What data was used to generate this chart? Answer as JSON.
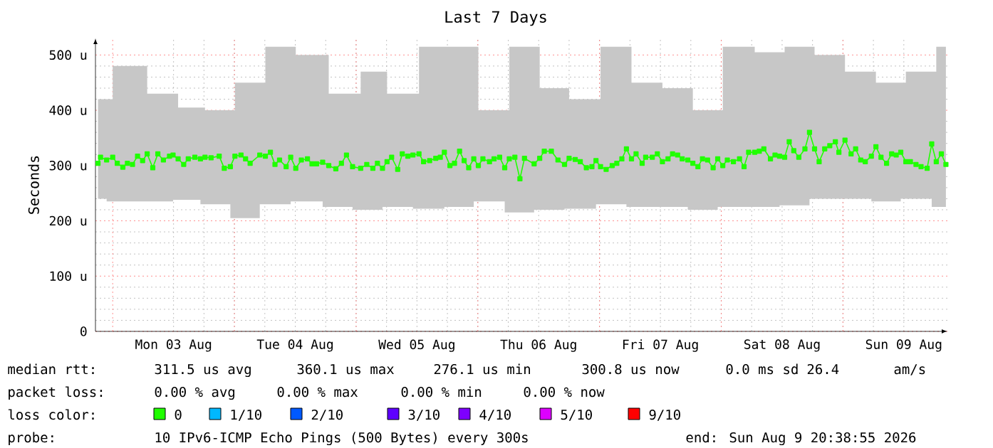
{
  "chart_data": {
    "type": "line",
    "title": "Last 7 Days",
    "ylabel": "Seconds",
    "xlim": [
      "2026-08-02T20:36",
      "2026-08-09T20:36"
    ],
    "ylim": [
      0,
      530
    ],
    "xticks": [
      {
        "value": "2026-08-03T00:00",
        "label": null
      },
      {
        "value": "2026-08-03T12:00",
        "label": "Mon 03 Aug"
      },
      {
        "value": "2026-08-04T00:00",
        "label": null
      },
      {
        "value": "2026-08-04T12:00",
        "label": "Tue 04 Aug"
      },
      {
        "value": "2026-08-05T00:00",
        "label": null
      },
      {
        "value": "2026-08-05T12:00",
        "label": "Wed 05 Aug"
      },
      {
        "value": "2026-08-06T00:00",
        "label": null
      },
      {
        "value": "2026-08-06T12:00",
        "label": "Thu 06 Aug"
      },
      {
        "value": "2026-08-07T00:00",
        "label": null
      },
      {
        "value": "2026-08-07T12:00",
        "label": "Fri 07 Aug"
      },
      {
        "value": "2026-08-08T00:00",
        "label": null
      },
      {
        "value": "2026-08-08T12:00",
        "label": "Sat 08 Aug"
      },
      {
        "value": "2026-08-09T00:00",
        "label": null
      },
      {
        "value": "2026-08-09T12:00",
        "label": "Sun 09 Aug"
      }
    ],
    "yticks": [
      0,
      {
        "value": 100,
        "label": "100 u"
      },
      {
        "value": 200,
        "label": "200 u"
      },
      {
        "value": 300,
        "label": "300 u"
      },
      {
        "value": 400,
        "label": "400 u"
      },
      {
        "value": 500,
        "label": "500 u"
      }
    ],
    "grid": true,
    "legend": "bottom",
    "legend_title": "loss color:",
    "marker": "square",
    "series": [
      {
        "name": "0",
        "color": "#20ff00",
        "x": [
          "2026-08-02T21:06",
          "2026-08-02T21:36",
          "2026-08-02T22:48",
          "2026-08-03T00:00",
          "2026-08-03T00:54",
          "2026-08-03T02:00",
          "2026-08-03T02:54",
          "2026-08-03T03:54",
          "2026-08-03T04:54",
          "2026-08-03T05:54",
          "2026-08-03T06:48",
          "2026-08-03T07:54",
          "2026-08-03T08:54",
          "2026-08-03T10:00",
          "2026-08-03T11:12",
          "2026-08-03T11:54",
          "2026-08-03T12:54",
          "2026-08-03T14:00",
          "2026-08-03T14:54",
          "2026-08-03T16:12",
          "2026-08-03T17:18",
          "2026-08-03T18:12",
          "2026-08-03T19:24",
          "2026-08-03T21:00",
          "2026-08-03T22:00",
          "2026-08-03T23:12",
          "2026-08-04T00:06",
          "2026-08-04T01:18",
          "2026-08-04T02:12",
          "2026-08-04T03:06",
          "2026-08-04T05:00",
          "2026-08-04T06:06",
          "2026-08-04T07:06",
          "2026-08-04T08:00",
          "2026-08-04T08:54",
          "2026-08-04T10:12",
          "2026-08-04T11:06",
          "2026-08-04T12:06",
          "2026-08-04T13:12",
          "2026-08-04T14:24",
          "2026-08-04T15:18",
          "2026-08-04T16:12",
          "2026-08-04T17:24",
          "2026-08-04T18:36",
          "2026-08-04T20:00",
          "2026-08-04T21:06",
          "2026-08-04T22:06",
          "2026-08-04T23:18",
          "2026-08-05T00:54",
          "2026-08-05T02:06",
          "2026-08-05T03:18",
          "2026-08-05T04:12",
          "2026-08-05T05:12",
          "2026-08-05T06:06",
          "2026-08-05T07:00",
          "2026-08-05T08:12",
          "2026-08-05T09:06",
          "2026-08-05T10:12",
          "2026-08-05T11:12",
          "2026-08-05T12:24",
          "2026-08-05T13:18",
          "2026-08-05T14:30",
          "2026-08-05T15:42",
          "2026-08-05T16:36",
          "2026-08-05T17:24",
          "2026-08-05T18:30",
          "2026-08-05T19:24",
          "2026-08-05T20:24",
          "2026-08-05T21:18",
          "2026-08-05T22:12",
          "2026-08-05T23:12",
          "2026-08-06T00:06",
          "2026-08-06T01:00",
          "2026-08-06T02:18",
          "2026-08-06T03:12",
          "2026-08-06T04:18",
          "2026-08-06T05:18",
          "2026-08-06T06:12",
          "2026-08-06T07:18",
          "2026-08-06T08:18",
          "2026-08-06T09:12",
          "2026-08-06T11:06",
          "2026-08-06T12:12",
          "2026-08-06T13:06",
          "2026-08-06T14:30",
          "2026-08-06T15:48",
          "2026-08-06T17:06",
          "2026-08-06T18:00",
          "2026-08-06T19:12",
          "2026-08-06T20:12",
          "2026-08-06T21:24",
          "2026-08-06T22:30",
          "2026-08-06T23:18",
          "2026-08-07T00:12",
          "2026-08-07T01:18",
          "2026-08-07T02:30",
          "2026-08-07T03:24",
          "2026-08-07T04:24",
          "2026-08-07T05:18",
          "2026-08-07T06:18",
          "2026-08-07T07:12",
          "2026-08-07T08:24",
          "2026-08-07T09:06",
          "2026-08-07T10:24",
          "2026-08-07T11:24",
          "2026-08-07T12:24",
          "2026-08-07T13:30",
          "2026-08-07T14:24",
          "2026-08-07T15:24",
          "2026-08-07T16:18",
          "2026-08-07T17:24",
          "2026-08-07T18:24",
          "2026-08-07T19:24",
          "2026-08-07T20:18",
          "2026-08-07T21:18",
          "2026-08-07T22:24",
          "2026-08-07T23:18",
          "2026-08-08T00:18",
          "2026-08-08T01:12",
          "2026-08-08T02:24",
          "2026-08-08T03:36",
          "2026-08-08T04:30",
          "2026-08-08T05:24",
          "2026-08-08T06:36",
          "2026-08-08T07:30",
          "2026-08-08T08:24",
          "2026-08-08T09:42",
          "2026-08-08T10:36",
          "2026-08-08T11:30",
          "2026-08-08T12:30",
          "2026-08-08T13:24",
          "2026-08-08T14:18",
          "2026-08-08T15:18",
          "2026-08-08T16:30",
          "2026-08-08T17:24",
          "2026-08-08T18:24",
          "2026-08-08T19:18",
          "2026-08-08T20:24",
          "2026-08-08T21:24",
          "2026-08-08T22:30",
          "2026-08-08T23:12",
          "2026-08-09T00:24",
          "2026-08-09T01:36",
          "2026-08-09T02:30",
          "2026-08-09T03:30",
          "2026-08-09T04:24",
          "2026-08-09T05:36",
          "2026-08-09T06:30",
          "2026-08-09T07:30",
          "2026-08-09T08:36",
          "2026-08-09T09:36",
          "2026-08-09T10:30",
          "2026-08-09T11:24",
          "2026-08-09T12:24",
          "2026-08-09T13:18",
          "2026-08-09T14:24",
          "2026-08-09T15:24",
          "2026-08-09T16:36",
          "2026-08-09T17:30",
          "2026-08-09T18:24",
          "2026-08-09T19:24",
          "2026-08-09T20:18"
        ],
        "values": [
          304,
          315,
          310,
          315,
          304,
          297,
          304,
          302,
          317,
          309,
          321,
          296,
          321,
          310,
          317,
          319,
          312,
          302,
          312,
          315,
          312,
          315,
          314,
          317,
          295,
          298,
          317,
          319,
          312,
          304,
          319,
          317,
          324,
          302,
          310,
          298,
          315,
          295,
          310,
          312,
          303,
          303,
          306,
          300,
          294,
          304,
          319,
          298,
          295,
          302,
          295,
          304,
          295,
          307,
          315,
          293,
          321,
          317,
          319,
          321,
          307,
          309,
          313,
          315,
          324,
          300,
          304,
          326,
          309,
          296,
          312,
          300,
          312,
          307,
          312,
          315,
          296,
          312,
          315,
          276,
          313,
          303,
          313,
          326,
          326,
          310,
          302,
          313,
          311,
          307,
          296,
          298,
          309,
          298,
          293,
          300,
          304,
          312,
          330,
          312,
          321,
          304,
          315,
          315,
          321,
          307,
          312,
          321,
          319,
          312,
          310,
          304,
          298,
          312,
          310,
          296,
          312,
          300,
          310,
          307,
          312,
          298,
          324,
          324,
          326,
          330,
          312,
          319,
          317,
          315,
          343,
          327,
          315,
          330,
          360,
          330,
          307,
          330,
          336,
          343,
          324,
          346,
          321,
          330,
          310,
          307,
          317,
          334,
          315,
          304,
          321,
          319,
          324,
          307,
          307,
          302,
          298,
          295,
          339,
          307,
          321,
          302
        ],
        "upper": [
          420,
          420,
          420,
          480,
          480,
          480,
          480,
          480,
          480,
          480,
          430,
          430,
          430,
          430,
          430,
          430,
          405,
          405,
          405,
          405,
          405,
          400,
          400,
          400,
          400,
          400,
          450,
          450,
          450,
          450,
          450,
          515,
          515,
          515,
          515,
          515,
          515,
          500,
          500,
          500,
          500,
          500,
          500,
          430,
          430,
          430,
          430,
          430,
          470,
          470,
          470,
          470,
          470,
          430,
          430,
          430,
          430,
          430,
          430,
          515,
          515,
          515,
          515,
          515,
          515,
          515,
          515,
          515,
          515,
          515,
          515,
          400,
          400,
          400,
          400,
          400,
          400,
          515,
          515,
          515,
          515,
          515,
          440,
          440,
          440,
          440,
          440,
          420,
          420,
          420,
          420,
          420,
          420,
          515,
          515,
          515,
          515,
          515,
          515,
          450,
          450,
          450,
          450,
          450,
          450,
          440,
          440,
          440,
          440,
          440,
          440,
          400,
          400,
          400,
          400,
          400,
          400,
          515,
          515,
          515,
          515,
          515,
          515,
          505,
          505,
          505,
          505,
          505,
          505,
          515,
          515,
          515,
          515,
          515,
          515,
          500,
          500,
          500,
          500,
          500,
          500,
          470,
          470,
          470,
          470,
          470,
          470,
          450,
          450,
          450,
          450,
          450,
          450,
          470,
          470,
          470,
          470,
          470,
          470,
          515,
          515,
          515
        ],
        "lower": [
          240,
          240,
          240,
          235,
          235,
          235,
          235,
          235,
          235,
          235,
          235,
          235,
          235,
          235,
          235,
          235,
          238,
          238,
          238,
          238,
          238,
          230,
          230,
          230,
          230,
          230,
          205,
          205,
          205,
          205,
          205,
          230,
          230,
          230,
          230,
          230,
          230,
          235,
          235,
          235,
          235,
          235,
          235,
          225,
          225,
          225,
          225,
          225,
          220,
          220,
          220,
          220,
          220,
          225,
          225,
          225,
          225,
          225,
          225,
          222,
          222,
          222,
          222,
          222,
          222,
          225,
          225,
          225,
          225,
          225,
          225,
          235,
          235,
          235,
          235,
          235,
          235,
          215,
          215,
          215,
          215,
          215,
          220,
          220,
          220,
          220,
          220,
          222,
          222,
          222,
          222,
          222,
          222,
          230,
          230,
          230,
          230,
          230,
          230,
          225,
          225,
          225,
          225,
          225,
          225,
          225,
          225,
          225,
          225,
          225,
          225,
          220,
          220,
          220,
          220,
          220,
          220,
          225,
          225,
          225,
          225,
          225,
          225,
          225,
          225,
          225,
          225,
          225,
          225,
          228,
          228,
          228,
          228,
          228,
          228,
          240,
          240,
          240,
          240,
          240,
          240,
          240,
          240,
          240,
          240,
          240,
          240,
          235,
          235,
          235,
          235,
          235,
          235,
          240,
          240,
          240,
          240,
          240,
          240,
          225,
          225,
          225
        ]
      },
      {
        "name": "1/10",
        "color": "#00b8ff"
      },
      {
        "name": "2/10",
        "color": "#0059ff"
      },
      {
        "name": "3/10",
        "color": "#5e00ff"
      },
      {
        "name": "4/10",
        "color": "#7e00ff"
      },
      {
        "name": "5/10",
        "color": "#dd00ff"
      },
      {
        "name": "9/10",
        "color": "#ff0000"
      }
    ],
    "annotations": [
      "median rtt:",
      "311.5 us avg",
      "360.1 us max",
      "276.1 us min",
      "300.8 us now",
      "0.0 ms sd",
      "26.4",
      "am/s",
      "packet loss:",
      "0.00 % avg",
      "0.00 % max",
      "0.00 % min",
      "0.00 % now",
      "probe:",
      "10 IPv6-ICMP Echo Pings (500 Bytes) every 300s",
      "end: Sun Aug 9 20:38:55 2026"
    ]
  }
}
